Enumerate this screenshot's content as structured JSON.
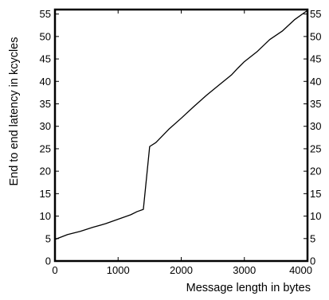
{
  "chart_data": {
    "type": "line",
    "xlabel": "Message length in bytes",
    "ylabel": "End to end latency in kcycles",
    "xlim": [
      0,
      4000
    ],
    "ylim": [
      0,
      56
    ],
    "x_ticks": [
      "0",
      "1000",
      "2000",
      "3000",
      "4000"
    ],
    "y_ticks": [
      "0",
      "5",
      "10",
      "15",
      "20",
      "25",
      "30",
      "35",
      "40",
      "45",
      "50",
      "55"
    ],
    "y_ticks_right": [
      "0",
      "5",
      "10",
      "15",
      "20",
      "25",
      "30",
      "35",
      "40",
      "45",
      "50",
      "55"
    ],
    "grid": false,
    "series": [
      {
        "x": [
          0,
          200,
          400,
          600,
          800,
          1000,
          1200,
          1300,
          1400,
          1500,
          1600,
          1800,
          2000,
          2200,
          2400,
          2600,
          2800,
          2900,
          3000,
          3200,
          3400,
          3600,
          3800,
          4000
        ],
        "y": [
          4.8,
          5.9,
          6.6,
          7.5,
          8.3,
          9.3,
          10.3,
          11.0,
          11.5,
          25.5,
          26.4,
          29.3,
          31.8,
          34.4,
          36.9,
          39.2,
          41.5,
          43.0,
          44.4,
          46.6,
          49.3,
          51.2,
          53.8,
          55.8
        ],
        "color": "#000000"
      }
    ]
  }
}
